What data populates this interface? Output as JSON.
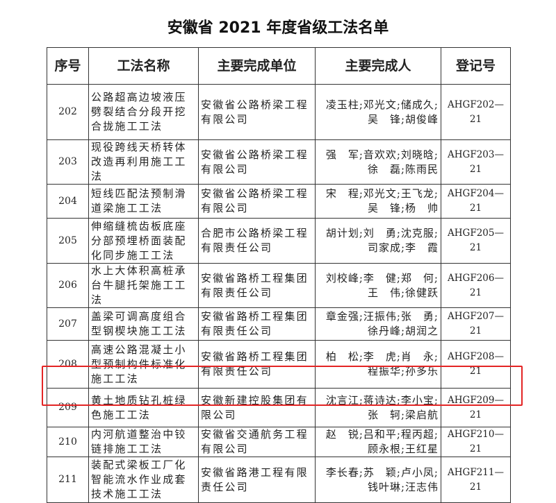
{
  "title": "安徽省 2021 年度省级工法名单",
  "columns": [
    "序号",
    "工法名称",
    "主要完成单位",
    "主要完成人",
    "登记号"
  ],
  "rows": [
    {
      "no": "202",
      "name": "公路超高边坡液压劈裂结合分段开挖合拢施工工法",
      "unit": "安徽省公路桥梁工程有限公司",
      "persons": [
        "凌玉柱;邓光文;储成久;",
        "吴　锋;胡俊峰"
      ],
      "reg": "AHGF202—21",
      "height": 80
    },
    {
      "no": "203",
      "name": "现役跨线天桥转体改造再利用施工工法",
      "unit": "安徽省公路桥梁工程有限公司",
      "persons": [
        "强　军;音欢欢;刘晓晗;",
        "徐　磊;陈雨民"
      ],
      "reg": "AHGF203—21",
      "height": 48
    },
    {
      "no": "204",
      "name": "短线匹配法预制滑道梁施工工法",
      "unit": "安徽省公路桥梁工程有限公司",
      "persons": [
        "宋　程;邓光文;王飞龙;",
        "吴　锋;杨　帅"
      ],
      "reg": "AHGF204—21",
      "height": 49
    },
    {
      "no": "205",
      "name": "伸缩缝梳齿板底座分部预埋桥面装配化同步施工工法",
      "unit": "合肥市公路桥梁工程有限责任公司",
      "persons": [
        "胡计划;刘　勇;沈克服;",
        "司家成;李　霞"
      ],
      "reg": "AHGF205—21",
      "height": 65
    },
    {
      "no": "206",
      "name": "水上大体积高桩承台牛腿托架施工工法",
      "unit": "安徽省路桥工程集团有限责任公司",
      "persons": [
        "刘校峰;李　健;郑　何;",
        "王　伟;徐健跃"
      ],
      "reg": "AHGF206—21",
      "height": 49
    },
    {
      "no": "207",
      "name": "盖梁可调高度组合型钢楔块施工工法",
      "unit": "安徽省路桥工程集团有限责任公司",
      "persons": [
        "章金强;汪振伟;张　勇;",
        "徐丹峰;胡润之"
      ],
      "reg": "AHGF207—21",
      "height": 47
    },
    {
      "no": "208",
      "name": "高速公路混凝土小型预制构件标准化施工工法",
      "unit": "安徽省路桥工程集团有限责任公司",
      "persons": [
        "柏　松;李　虎;肖　永;",
        "程振华;孙多乐"
      ],
      "reg": "AHGF208—21",
      "height": 69
    },
    {
      "no": "209",
      "name": "黄土地质钻孔桩绿色施工工法",
      "unit": "安徽新建控股集团有限公司",
      "persons": [
        "沈言江;蒋诗达;李小宝;",
        "张　轲;梁启航"
      ],
      "reg": "AHGF209—21",
      "height": 56
    },
    {
      "no": "210",
      "name": "内河航道整治中铰链排施工工法",
      "unit": "安徽省交通航务工程有限公司",
      "persons": [
        "赵　锐;吕和平;程丙超;",
        "顾永根;王红星"
      ],
      "reg": "AHGF210—21",
      "height": 43
    },
    {
      "no": "211",
      "name": "装配式梁板工厂化智能流水作业成套技术施工工法",
      "unit": "安徽省路港工程有限责任公司",
      "persons": [
        "李长春;苏　颖;卢小凤;",
        "钱叶琳;汪志伟"
      ],
      "reg": "AHGF211—21",
      "height": 66
    }
  ],
  "highlight_color": "#e32424"
}
